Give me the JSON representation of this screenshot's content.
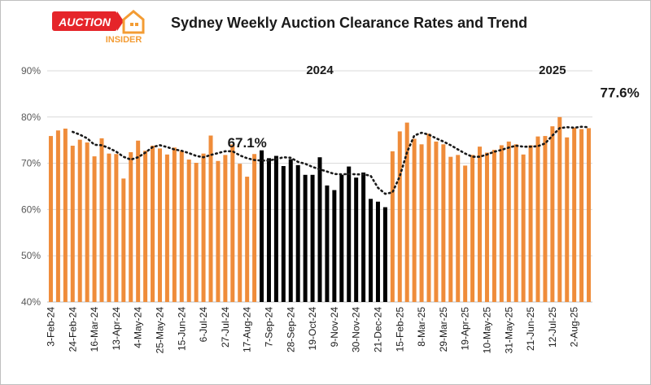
{
  "logo": {
    "word1": "AUCTION",
    "word2": "INSIDER",
    "red": "#e5252a",
    "orange": "#f39c34"
  },
  "chart_data": {
    "type": "bar",
    "title": "Sydney Weekly Auction Clearance Rates and Trend",
    "ylim": [
      40,
      90
    ],
    "yticks": [
      "40%",
      "50%",
      "60%",
      "70%",
      "80%",
      "90%"
    ],
    "ytick_values": [
      40,
      50,
      60,
      70,
      80,
      90
    ],
    "tick_labels": [
      "3-Feb-24",
      "24-Feb-24",
      "16-Mar-24",
      "13-Apr-24",
      "4-May-24",
      "25-May-24",
      "15-Jun-24",
      "6-Jul-24",
      "27-Jul-24",
      "17-Aug-24",
      "7-Sep-24",
      "28-Sep-24",
      "19-Oct-24",
      "9-Nov-24",
      "30-Nov-24",
      "21-Dec-24",
      "15-Feb-25",
      "8-Mar-25",
      "29-Mar-25",
      "19-Apr-25",
      "10-May-25",
      "31-May-25",
      "21-Jun-25",
      "12-Jul-25",
      "2-Aug-25"
    ],
    "values": [
      75.9,
      77.1,
      77.5,
      73.8,
      75.1,
      74.5,
      71.5,
      75.4,
      72.1,
      72.0,
      66.7,
      72.4,
      74.9,
      72.7,
      73.8,
      73.2,
      71.9,
      73.4,
      72.7,
      70.8,
      70.1,
      72.1,
      76.0,
      70.5,
      71.8,
      74.1,
      69.9,
      67.1,
      72.0,
      72.8,
      71.1,
      71.6,
      69.4,
      70.9,
      69.6,
      67.5,
      67.5,
      71.3,
      65.2,
      64.2,
      67.5,
      69.3,
      66.9,
      68.0,
      62.3,
      61.7,
      60.5,
      72.6,
      76.9,
      78.8,
      75.3,
      74.1,
      76.4,
      74.7,
      74.1,
      71.4,
      71.8,
      69.5,
      71.8,
      73.6,
      72.3,
      72.9,
      73.9,
      74.7,
      74.1,
      71.9,
      73.9,
      75.8,
      75.9,
      78.0,
      80.0,
      75.6,
      77.7,
      77.4,
      77.6
    ],
    "trend": [
      null,
      null,
      null,
      76.8,
      76.2,
      75.4,
      74.0,
      73.9,
      73.3,
      72.5,
      71.4,
      70.8,
      71.3,
      72.3,
      73.5,
      73.9,
      73.5,
      73.0,
      72.7,
      72.2,
      71.6,
      71.3,
      71.8,
      72.2,
      72.6,
      72.6,
      71.7,
      71.1,
      70.7,
      70.6,
      70.6,
      70.9,
      71.3,
      71.2,
      70.3,
      69.9,
      69.2,
      68.7,
      68.2,
      67.7,
      67.6,
      67.7,
      67.6,
      67.6,
      67.3,
      64.7,
      63.4,
      63.7,
      67.2,
      72.4,
      76.0,
      76.6,
      76.2,
      75.4,
      74.7,
      73.9,
      73.0,
      72.1,
      71.4,
      71.4,
      71.9,
      72.5,
      72.9,
      73.4,
      73.8,
      73.6,
      73.6,
      73.7,
      74.3,
      76.0,
      77.6,
      77.8,
      77.7,
      77.9,
      77.8
    ],
    "series_colors": {
      "2024_pre": "#ef8c3a",
      "2024_spring": "#000000",
      "2025": "#ef8c3a"
    },
    "black_range": [
      29,
      46
    ],
    "annotations": [
      {
        "text": "67.1%",
        "index": 27
      },
      {
        "text": "77.6%",
        "index": 74
      }
    ],
    "year_labels": [
      {
        "text": "2024",
        "index": 37
      },
      {
        "text": "2025",
        "index": 69
      }
    ],
    "legend": "none",
    "grid": "horizontal"
  }
}
